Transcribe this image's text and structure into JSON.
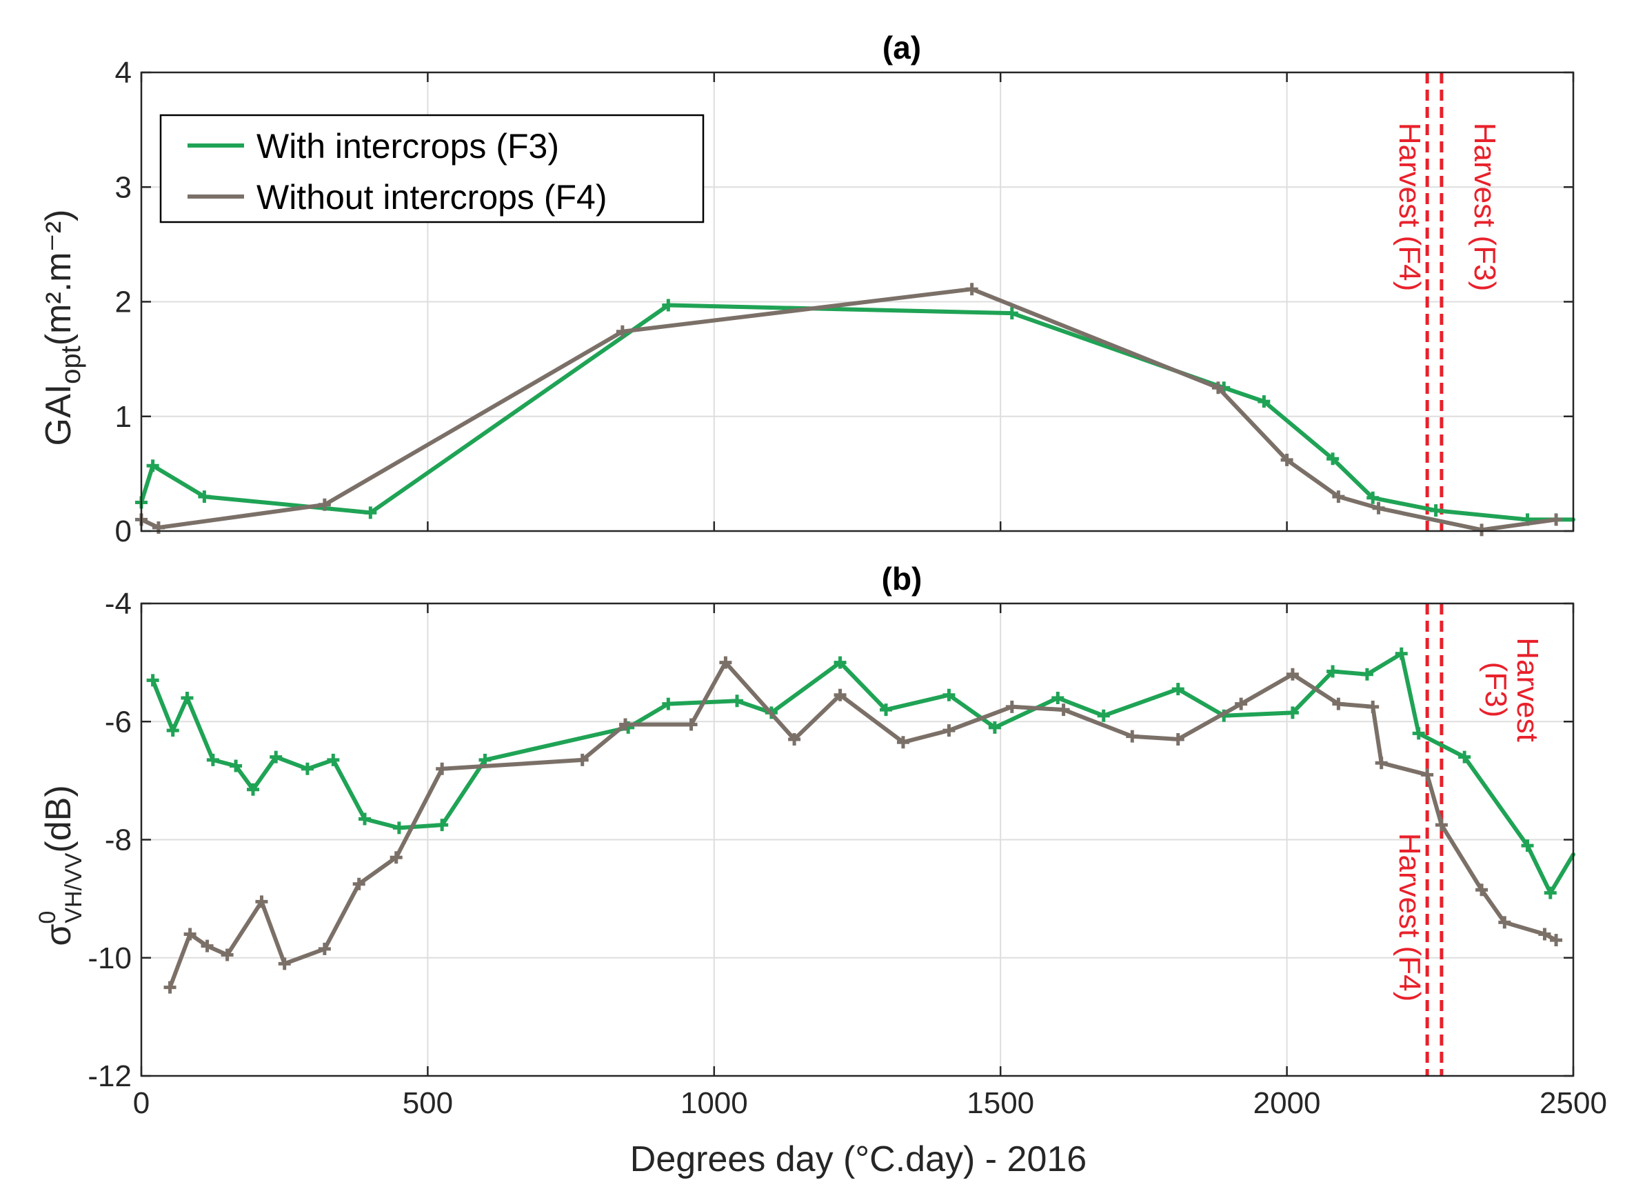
{
  "colors": {
    "green": "#1fa355",
    "gray": "#7b7068",
    "harvest": "#e8212b",
    "grid": "#dedede",
    "axis": "#262626"
  },
  "chart_data": [
    {
      "type": "line",
      "panel_title": "(a)",
      "ylabel": "GAI",
      "ylabel_sub": "opt",
      "ylabel_unit": "(m².m⁻²)",
      "xlim": [
        0,
        2500
      ],
      "ylim": [
        0,
        4
      ],
      "xticks": [
        0,
        500,
        1000,
        1500,
        2000,
        2500
      ],
      "yticks": [
        0,
        1,
        2,
        3,
        4
      ],
      "grid": true,
      "legend": {
        "placement": "top-left",
        "entries": [
          "With intercrops (F3)",
          "Without intercrops (F4)"
        ]
      },
      "series": [
        {
          "name": "With intercrops (F3)",
          "color_key": "green",
          "x": [
            0,
            20,
            110,
            400,
            920,
            1520,
            1890,
            1960,
            2080,
            2150,
            2260,
            2420,
            2500
          ],
          "y": [
            0.25,
            0.57,
            0.3,
            0.16,
            1.97,
            1.9,
            1.25,
            1.13,
            0.63,
            0.29,
            0.18,
            0.1,
            0.1
          ]
        },
        {
          "name": "Without intercrops (F4)",
          "color_key": "gray",
          "x": [
            0,
            30,
            320,
            840,
            1450,
            1880,
            2000,
            2090,
            2160,
            2340,
            2470
          ],
          "y": [
            0.1,
            0.03,
            0.23,
            1.74,
            2.11,
            1.25,
            0.62,
            0.3,
            0.2,
            0.01,
            0.1
          ]
        }
      ],
      "harvest_lines": [
        {
          "x": 2245,
          "label": "Harvest (F4)"
        },
        {
          "x": 2270,
          "label": "Harvest (F3)"
        }
      ]
    },
    {
      "type": "line",
      "panel_title": "(b)",
      "ylabel": "σ",
      "ylabel_sup": "0",
      "ylabel_sub": "VH/VV",
      "ylabel_unit": "(dB)",
      "xlabel": "Degrees day (°C.day) - 2016",
      "xlim": [
        0,
        2500
      ],
      "ylim": [
        -12,
        -4
      ],
      "xticks": [
        0,
        500,
        1000,
        1500,
        2000,
        2500
      ],
      "yticks": [
        -12,
        -10,
        -8,
        -6,
        -4
      ],
      "grid": true,
      "series": [
        {
          "name": "With intercrops (F3)",
          "color_key": "green",
          "x": [
            20,
            55,
            80,
            125,
            165,
            195,
            235,
            290,
            335,
            390,
            450,
            525,
            600,
            850,
            920,
            1040,
            1100,
            1220,
            1300,
            1410,
            1490,
            1600,
            1680,
            1810,
            1890,
            2010,
            2080,
            2140,
            2200,
            2230,
            2310,
            2420,
            2460,
            2500
          ],
          "y": [
            -5.3,
            -6.15,
            -5.6,
            -6.65,
            -6.75,
            -7.15,
            -6.6,
            -6.8,
            -6.65,
            -7.65,
            -7.8,
            -7.75,
            -6.65,
            -6.1,
            -5.7,
            -5.65,
            -5.85,
            -5.0,
            -5.8,
            -5.55,
            -6.1,
            -5.6,
            -5.9,
            -5.45,
            -5.9,
            -5.85,
            -5.15,
            -5.2,
            -4.85,
            -6.2,
            -6.6,
            -8.1,
            -8.9,
            -8.25
          ]
        },
        {
          "name": "Without intercrops (F4)",
          "color_key": "gray",
          "x": [
            50,
            85,
            115,
            150,
            210,
            250,
            320,
            380,
            445,
            525,
            770,
            845,
            960,
            1020,
            1140,
            1220,
            1330,
            1410,
            1520,
            1610,
            1730,
            1810,
            1920,
            2010,
            2090,
            2150,
            2165,
            2245,
            2270,
            2340,
            2380,
            2450,
            2470
          ],
          "y": [
            -10.5,
            -9.6,
            -9.8,
            -9.95,
            -9.05,
            -10.1,
            -9.85,
            -8.75,
            -8.3,
            -6.8,
            -6.65,
            -6.05,
            -6.05,
            -5.0,
            -6.3,
            -5.55,
            -6.35,
            -6.15,
            -5.75,
            -5.8,
            -6.25,
            -6.3,
            -5.7,
            -5.2,
            -5.7,
            -5.75,
            -6.7,
            -6.9,
            -7.75,
            -8.85,
            -9.4,
            -9.6,
            -9.7
          ]
        }
      ],
      "harvest_lines": [
        {
          "x": 2245,
          "label": "Harvest (F4)"
        },
        {
          "x": 2270,
          "label": "Harvest (F3)"
        }
      ]
    }
  ]
}
